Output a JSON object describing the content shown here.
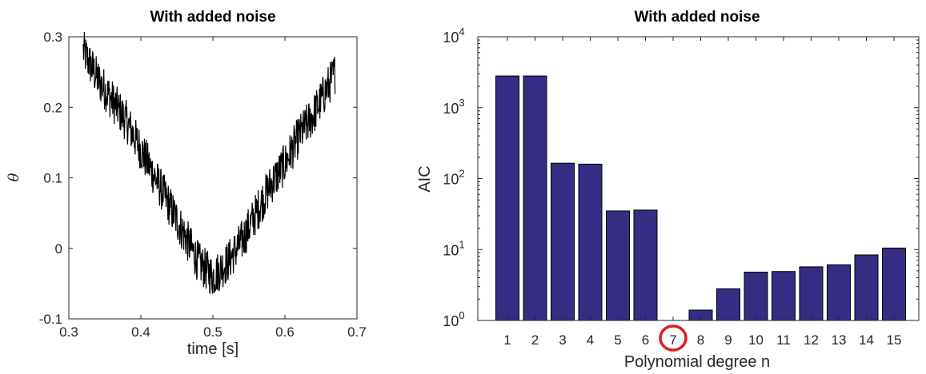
{
  "chart_data": [
    {
      "type": "line",
      "title": "With added noise",
      "xlabel": "time [s]",
      "ylabel": "θ",
      "xlim": [
        0.3,
        0.7
      ],
      "ylim": [
        -0.1,
        0.3
      ],
      "xticks": [
        "0.3",
        "0.4",
        "0.5",
        "0.6",
        "0.7"
      ],
      "yticks": [
        "-0.1",
        "0",
        "0.1",
        "0.2",
        "0.3"
      ],
      "line_color": "#000000",
      "grid": false,
      "series": [
        {
          "x": [
            0.32,
            0.34,
            0.36,
            0.38,
            0.4,
            0.42,
            0.44,
            0.46,
            0.48,
            0.5,
            0.52,
            0.54,
            0.56,
            0.58,
            0.6,
            0.62,
            0.64,
            0.66,
            0.67
          ],
          "y": [
            0.28,
            0.24,
            0.21,
            0.18,
            0.14,
            0.1,
            0.06,
            0.02,
            -0.02,
            -0.04,
            -0.02,
            0.01,
            0.05,
            0.09,
            0.12,
            0.16,
            0.19,
            0.23,
            0.25
          ],
          "noise_amplitude": 0.03
        }
      ]
    },
    {
      "type": "bar",
      "title": "With added noise",
      "xlabel": "Polynomial degree n",
      "ylabel": "AIC",
      "yscale": "log",
      "ylim": [
        1,
        10000
      ],
      "yticks": [
        {
          "base": "10",
          "exp": "0"
        },
        {
          "base": "10",
          "exp": "1"
        },
        {
          "base": "10",
          "exp": "2"
        },
        {
          "base": "10",
          "exp": "3"
        },
        {
          "base": "10",
          "exp": "4"
        }
      ],
      "categories": [
        "1",
        "2",
        "3",
        "4",
        "5",
        "6",
        "7",
        "8",
        "9",
        "10",
        "11",
        "12",
        "13",
        "14",
        "15"
      ],
      "values": [
        2800,
        2800,
        165,
        160,
        35,
        36,
        1,
        1.4,
        2.8,
        4.8,
        4.9,
        5.7,
        6.1,
        8.4,
        10.5
      ],
      "bar_color": "#352d84",
      "highlight": {
        "category": "7",
        "color": "#e8191a"
      }
    }
  ]
}
